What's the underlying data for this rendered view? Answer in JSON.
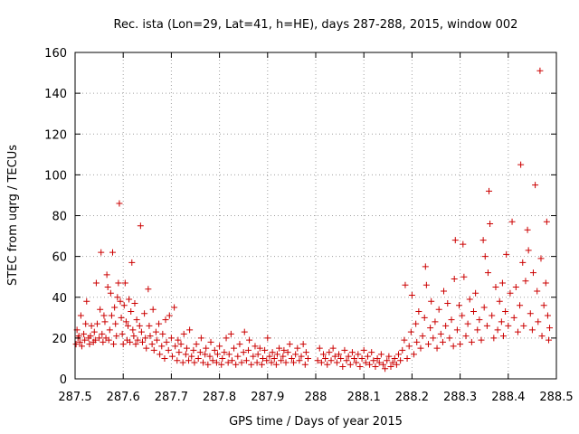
{
  "chart_data": {
    "type": "scatter",
    "title": "Rec. ista (Lon=29, Lat=41, h=HE), days 287-288, 2015, window 002",
    "xlabel": "GPS time / Days of year 2015",
    "ylabel": "STEC from uqrg / TECUs",
    "xlim": [
      287.5,
      288.5
    ],
    "ylim": [
      0,
      160
    ],
    "xticks": [
      287.5,
      287.6,
      287.7,
      287.8,
      287.9,
      288,
      288.1,
      288.2,
      288.3,
      288.4,
      288.5
    ],
    "xtick_labels": [
      "287.5",
      "287.6",
      "287.7",
      "287.8",
      "287.9",
      "288",
      "288.1",
      "288.2",
      "288.3",
      "288.4",
      "288.5"
    ],
    "yticks": [
      0,
      20,
      40,
      60,
      80,
      100,
      120,
      140,
      160
    ],
    "ytick_labels": [
      "0",
      "20",
      "40",
      "60",
      "80",
      "100",
      "120",
      "140",
      "160"
    ],
    "grid": true,
    "marker": "+",
    "colors": {
      "marker": "#cc0000",
      "grid": "#a0a0a0",
      "frame": "#000000"
    },
    "points": [
      [
        287.502,
        17
      ],
      [
        287.504,
        24
      ],
      [
        287.506,
        20
      ],
      [
        287.508,
        21
      ],
      [
        287.51,
        18
      ],
      [
        287.512,
        31
      ],
      [
        287.514,
        16
      ],
      [
        287.518,
        22
      ],
      [
        287.52,
        19
      ],
      [
        287.522,
        27
      ],
      [
        287.524,
        38
      ],
      [
        287.528,
        20
      ],
      [
        287.53,
        17
      ],
      [
        287.532,
        21
      ],
      [
        287.534,
        26
      ],
      [
        287.538,
        18
      ],
      [
        287.54,
        23
      ],
      [
        287.542,
        19
      ],
      [
        287.544,
        47
      ],
      [
        287.546,
        27
      ],
      [
        287.55,
        20
      ],
      [
        287.552,
        34
      ],
      [
        287.554,
        62
      ],
      [
        287.556,
        22
      ],
      [
        287.558,
        18
      ],
      [
        287.56,
        31
      ],
      [
        287.562,
        28
      ],
      [
        287.564,
        20
      ],
      [
        287.566,
        51
      ],
      [
        287.568,
        45
      ],
      [
        287.57,
        19
      ],
      [
        287.572,
        24
      ],
      [
        287.574,
        42
      ],
      [
        287.576,
        31
      ],
      [
        287.578,
        62
      ],
      [
        287.58,
        17
      ],
      [
        287.582,
        35
      ],
      [
        287.584,
        27
      ],
      [
        287.586,
        21
      ],
      [
        287.588,
        40
      ],
      [
        287.59,
        47
      ],
      [
        287.592,
        86
      ],
      [
        287.594,
        38
      ],
      [
        287.596,
        30
      ],
      [
        287.598,
        22
      ],
      [
        287.6,
        17
      ],
      [
        287.602,
        36
      ],
      [
        287.604,
        47
      ],
      [
        287.606,
        28
      ],
      [
        287.608,
        19
      ],
      [
        287.61,
        26
      ],
      [
        287.612,
        39
      ],
      [
        287.614,
        18
      ],
      [
        287.616,
        33
      ],
      [
        287.618,
        57
      ],
      [
        287.62,
        24
      ],
      [
        287.622,
        21
      ],
      [
        287.624,
        37
      ],
      [
        287.626,
        17
      ],
      [
        287.628,
        29
      ],
      [
        287.63,
        19
      ],
      [
        287.634,
        26
      ],
      [
        287.636,
        75
      ],
      [
        287.638,
        23
      ],
      [
        287.64,
        18
      ],
      [
        287.644,
        32
      ],
      [
        287.646,
        20
      ],
      [
        287.648,
        15
      ],
      [
        287.652,
        44
      ],
      [
        287.654,
        26
      ],
      [
        287.656,
        21
      ],
      [
        287.66,
        17
      ],
      [
        287.662,
        34
      ],
      [
        287.664,
        14
      ],
      [
        287.668,
        23
      ],
      [
        287.67,
        19
      ],
      [
        287.674,
        27
      ],
      [
        287.676,
        12
      ],
      [
        287.68,
        16
      ],
      [
        287.682,
        22
      ],
      [
        287.686,
        10
      ],
      [
        287.688,
        29
      ],
      [
        287.69,
        18
      ],
      [
        287.694,
        14
      ],
      [
        287.696,
        31
      ],
      [
        287.7,
        20
      ],
      [
        287.702,
        11
      ],
      [
        287.706,
        35
      ],
      [
        287.708,
        16
      ],
      [
        287.712,
        9
      ],
      [
        287.714,
        19
      ],
      [
        287.716,
        13
      ],
      [
        287.72,
        17
      ],
      [
        287.724,
        8
      ],
      [
        287.726,
        22
      ],
      [
        287.73,
        12
      ],
      [
        287.732,
        15
      ],
      [
        287.736,
        9
      ],
      [
        287.738,
        24
      ],
      [
        287.742,
        11
      ],
      [
        287.746,
        14
      ],
      [
        287.748,
        8
      ],
      [
        287.752,
        17
      ],
      [
        287.756,
        10
      ],
      [
        287.76,
        13
      ],
      [
        287.762,
        20
      ],
      [
        287.766,
        8
      ],
      [
        287.77,
        12
      ],
      [
        287.772,
        15
      ],
      [
        287.776,
        7
      ],
      [
        287.78,
        11
      ],
      [
        287.782,
        18
      ],
      [
        287.786,
        9
      ],
      [
        287.79,
        14
      ],
      [
        287.794,
        8
      ],
      [
        287.796,
        12
      ],
      [
        287.8,
        16
      ],
      [
        287.804,
        7
      ],
      [
        287.806,
        10
      ],
      [
        287.81,
        13
      ],
      [
        287.814,
        20
      ],
      [
        287.818,
        8
      ],
      [
        287.82,
        12
      ],
      [
        287.824,
        22
      ],
      [
        287.826,
        9
      ],
      [
        287.83,
        15
      ],
      [
        287.834,
        7
      ],
      [
        287.838,
        11
      ],
      [
        287.842,
        17
      ],
      [
        287.846,
        8
      ],
      [
        287.85,
        13
      ],
      [
        287.852,
        23
      ],
      [
        287.856,
        9
      ],
      [
        287.86,
        14
      ],
      [
        287.862,
        19
      ],
      [
        287.866,
        7
      ],
      [
        287.87,
        11
      ],
      [
        287.874,
        16
      ],
      [
        287.878,
        8
      ],
      [
        287.88,
        12
      ],
      [
        287.884,
        15
      ],
      [
        287.888,
        7
      ],
      [
        287.89,
        10
      ],
      [
        287.894,
        14
      ],
      [
        287.898,
        9
      ],
      [
        287.9,
        20
      ],
      [
        287.904,
        11
      ],
      [
        287.908,
        8
      ],
      [
        287.91,
        13
      ],
      [
        287.914,
        10
      ],
      [
        287.918,
        7
      ],
      [
        287.92,
        12
      ],
      [
        287.924,
        15
      ],
      [
        287.928,
        9
      ],
      [
        287.932,
        11
      ],
      [
        287.934,
        14
      ],
      [
        287.938,
        8
      ],
      [
        287.942,
        13
      ],
      [
        287.946,
        17
      ],
      [
        287.95,
        10
      ],
      [
        287.954,
        8
      ],
      [
        287.958,
        12
      ],
      [
        287.962,
        15
      ],
      [
        287.966,
        9
      ],
      [
        287.97,
        11
      ],
      [
        287.974,
        17
      ],
      [
        287.978,
        7
      ],
      [
        287.98,
        13
      ],
      [
        287.984,
        10
      ],
      [
        288.004,
        9
      ],
      [
        288.008,
        15
      ],
      [
        288.012,
        8
      ],
      [
        288.016,
        12
      ],
      [
        288.02,
        10
      ],
      [
        288.024,
        7
      ],
      [
        288.028,
        13
      ],
      [
        288.032,
        9
      ],
      [
        288.036,
        15
      ],
      [
        288.04,
        11
      ],
      [
        288.044,
        8
      ],
      [
        288.048,
        12
      ],
      [
        288.052,
        10
      ],
      [
        288.056,
        6
      ],
      [
        288.06,
        14
      ],
      [
        288.064,
        9
      ],
      [
        288.068,
        11
      ],
      [
        288.072,
        7
      ],
      [
        288.076,
        13
      ],
      [
        288.08,
        10
      ],
      [
        288.084,
        8
      ],
      [
        288.088,
        12
      ],
      [
        288.092,
        6
      ],
      [
        288.096,
        10
      ],
      [
        288.1,
        14
      ],
      [
        288.104,
        8
      ],
      [
        288.108,
        11
      ],
      [
        288.112,
        7
      ],
      [
        288.116,
        13
      ],
      [
        288.12,
        9
      ],
      [
        288.124,
        6
      ],
      [
        288.128,
        10
      ],
      [
        288.132,
        8
      ],
      [
        288.136,
        12
      ],
      [
        288.14,
        7
      ],
      [
        288.144,
        5
      ],
      [
        288.148,
        9
      ],
      [
        288.152,
        11
      ],
      [
        288.156,
        6
      ],
      [
        288.16,
        8
      ],
      [
        288.164,
        10
      ],
      [
        288.168,
        7
      ],
      [
        288.172,
        12
      ],
      [
        288.176,
        9
      ],
      [
        288.18,
        14
      ],
      [
        288.184,
        19
      ],
      [
        288.186,
        46
      ],
      [
        288.19,
        10
      ],
      [
        288.194,
        16
      ],
      [
        288.198,
        23
      ],
      [
        288.2,
        41
      ],
      [
        288.204,
        12
      ],
      [
        288.208,
        27
      ],
      [
        288.21,
        18
      ],
      [
        288.214,
        33
      ],
      [
        288.218,
        15
      ],
      [
        288.222,
        21
      ],
      [
        288.226,
        30
      ],
      [
        288.228,
        55
      ],
      [
        288.23,
        46
      ],
      [
        288.234,
        17
      ],
      [
        288.238,
        25
      ],
      [
        288.24,
        38
      ],
      [
        288.244,
        20
      ],
      [
        288.248,
        28
      ],
      [
        288.252,
        15
      ],
      [
        288.256,
        34
      ],
      [
        288.26,
        22
      ],
      [
        288.264,
        18
      ],
      [
        288.266,
        43
      ],
      [
        288.27,
        26
      ],
      [
        288.274,
        37
      ],
      [
        288.278,
        20
      ],
      [
        288.282,
        29
      ],
      [
        288.286,
        16
      ],
      [
        288.288,
        49
      ],
      [
        288.29,
        68
      ],
      [
        288.294,
        24
      ],
      [
        288.298,
        36
      ],
      [
        288.3,
        17
      ],
      [
        288.304,
        31
      ],
      [
        288.306,
        66
      ],
      [
        288.308,
        50
      ],
      [
        288.312,
        21
      ],
      [
        288.316,
        27
      ],
      [
        288.32,
        39
      ],
      [
        288.324,
        18
      ],
      [
        288.328,
        33
      ],
      [
        288.332,
        42
      ],
      [
        288.336,
        24
      ],
      [
        288.34,
        29
      ],
      [
        288.344,
        19
      ],
      [
        288.348,
        68
      ],
      [
        288.35,
        35
      ],
      [
        288.352,
        60
      ],
      [
        288.356,
        26
      ],
      [
        288.358,
        52
      ],
      [
        288.36,
        92
      ],
      [
        288.362,
        76
      ],
      [
        288.366,
        31
      ],
      [
        288.37,
        20
      ],
      [
        288.374,
        45
      ],
      [
        288.378,
        24
      ],
      [
        288.382,
        38
      ],
      [
        288.386,
        28
      ],
      [
        288.388,
        47
      ],
      [
        288.39,
        21
      ],
      [
        288.394,
        33
      ],
      [
        288.396,
        61
      ],
      [
        288.4,
        26
      ],
      [
        288.404,
        42
      ],
      [
        288.408,
        77
      ],
      [
        288.412,
        30
      ],
      [
        288.416,
        45
      ],
      [
        288.42,
        23
      ],
      [
        288.424,
        36
      ],
      [
        288.426,
        105
      ],
      [
        288.43,
        57
      ],
      [
        288.432,
        26
      ],
      [
        288.436,
        48
      ],
      [
        288.44,
        73
      ],
      [
        288.442,
        63
      ],
      [
        288.446,
        32
      ],
      [
        288.45,
        24
      ],
      [
        288.452,
        52
      ],
      [
        288.456,
        95
      ],
      [
        288.46,
        43
      ],
      [
        288.462,
        28
      ],
      [
        288.466,
        151
      ],
      [
        288.468,
        59
      ],
      [
        288.47,
        21
      ],
      [
        288.474,
        36
      ],
      [
        288.478,
        47
      ],
      [
        288.48,
        77
      ],
      [
        288.482,
        31
      ],
      [
        288.484,
        19
      ],
      [
        288.486,
        25
      ]
    ]
  }
}
